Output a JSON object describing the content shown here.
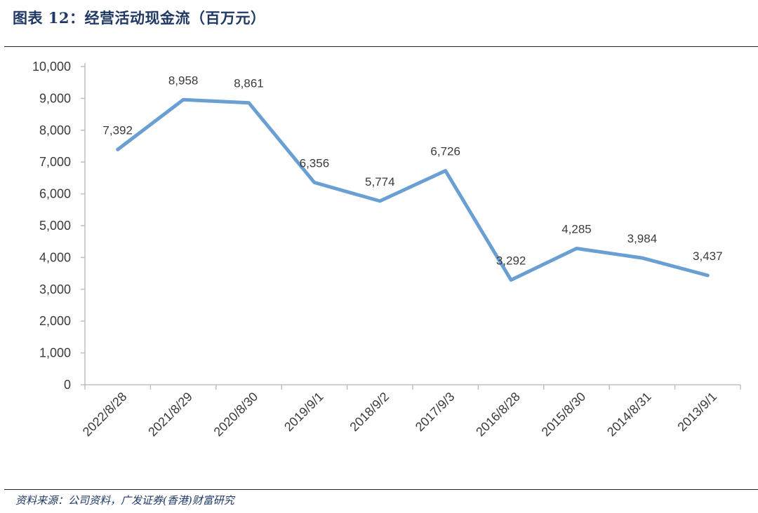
{
  "title": "图表 12：经营活动现金流（百万元）",
  "source": "资料来源：公司资料，广发证券(香港)财富研究",
  "colors": {
    "line": "#6a9fd4",
    "axis": "#bfbfbf",
    "text": "#3b3b3b",
    "title": "#1f3864"
  },
  "chart_data": {
    "type": "line",
    "title": "",
    "xlabel": "",
    "ylabel": "",
    "ylim": [
      0,
      10000
    ],
    "yticks": [
      "0",
      "1,000",
      "2,000",
      "3,000",
      "4,000",
      "5,000",
      "6,000",
      "7,000",
      "8,000",
      "9,000",
      "10,000"
    ],
    "categories": [
      "2022/8/28",
      "2021/8/29",
      "2020/8/30",
      "2019/9/1",
      "2018/9/2",
      "2017/9/3",
      "2016/8/28",
      "2015/8/30",
      "2014/8/31",
      "2013/9/1"
    ],
    "values": [
      7392,
      8958,
      8861,
      6356,
      5774,
      6726,
      3292,
      4285,
      3984,
      3437
    ],
    "value_labels": [
      "7,392",
      "8,958",
      "8,861",
      "6,356",
      "5,774",
      "6,726",
      "3,292",
      "4,285",
      "3,984",
      "3,437"
    ],
    "grid": false,
    "legend": "none"
  }
}
